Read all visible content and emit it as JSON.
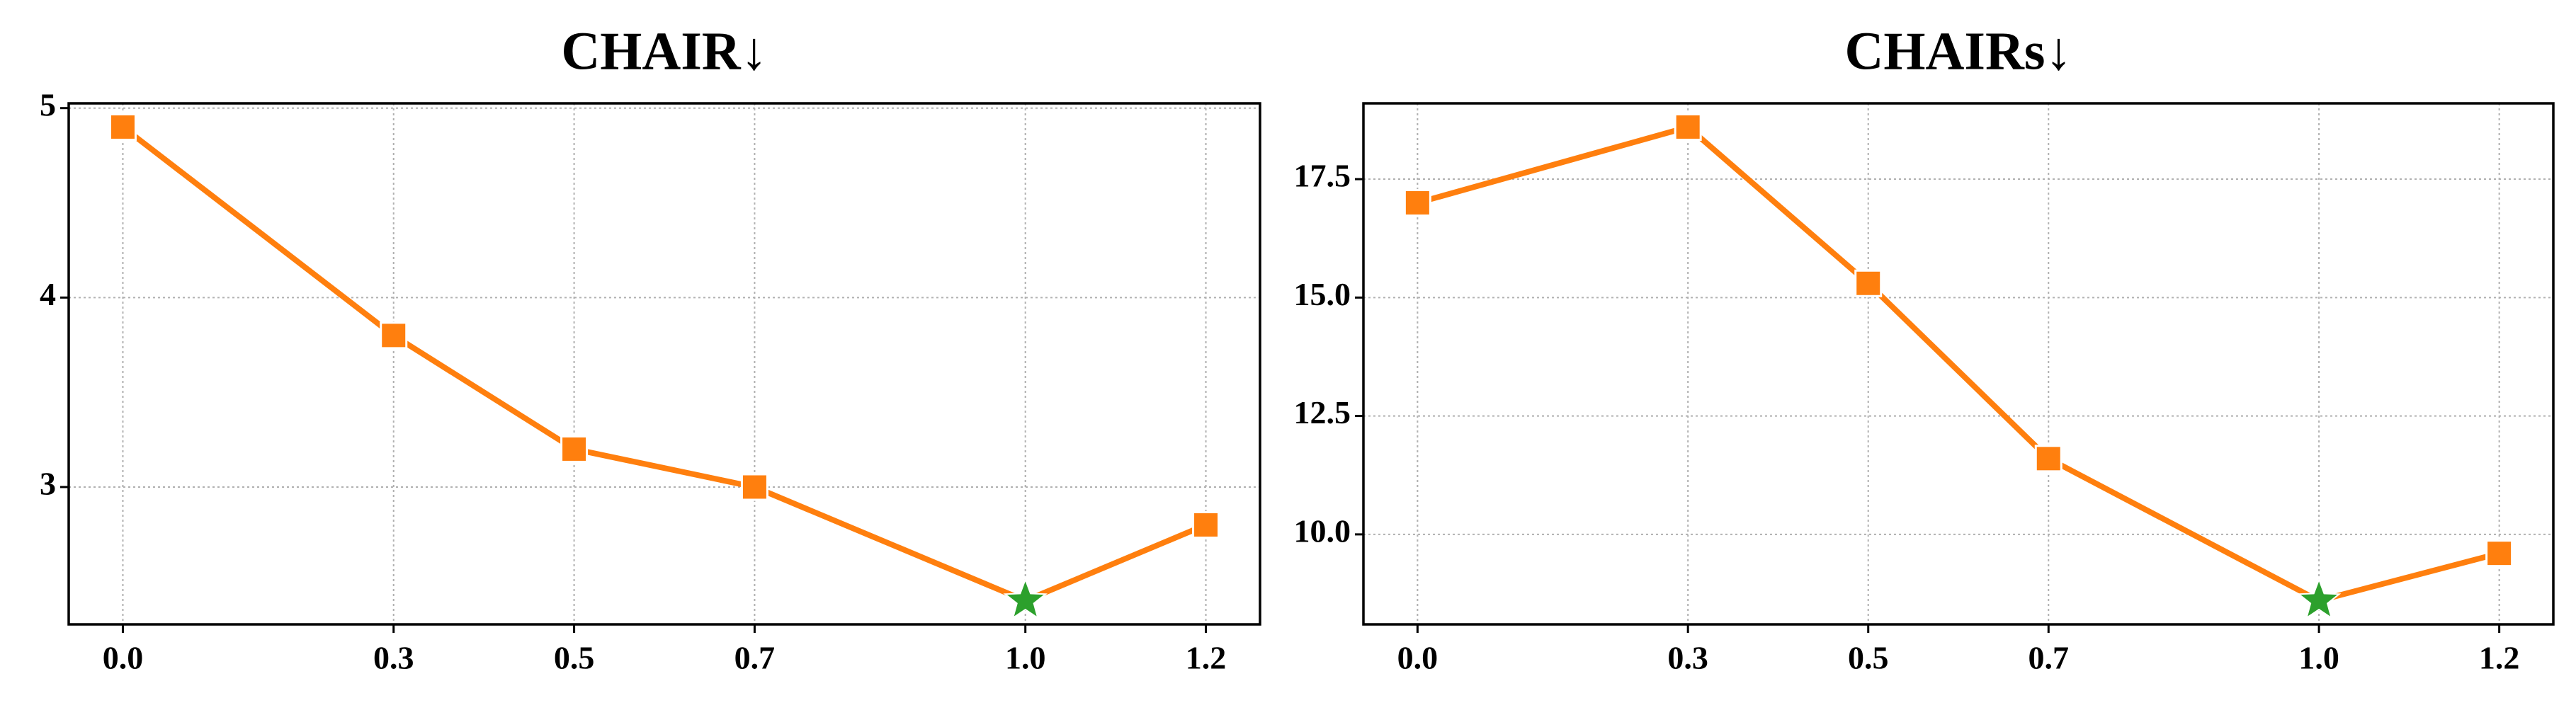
{
  "chart_data": [
    {
      "type": "line",
      "title": "CHAIR↓",
      "x": [
        {
          "value": 0.0,
          "label": "0.0"
        },
        0.3,
        0.5,
        0.7,
        {
          "value": 1.0,
          "label": "1.0"
        },
        1.2
      ],
      "series": [
        {
          "color": "#ff7f0e",
          "values": [
            4.9,
            3.8,
            3.2,
            3.0,
            2.4,
            2.8
          ]
        }
      ],
      "marker": "square",
      "highlight_index": 4,
      "highlight_color": "#2ca02c",
      "xlim": [
        -0.06,
        1.26
      ],
      "ylim": [
        2.275,
        5.025
      ],
      "xticks": [
        {
          "value": 0.0,
          "label": "0.0"
        },
        0.3,
        0.5,
        0.7,
        {
          "value": 1.0,
          "label": "1.0"
        },
        1.2
      ],
      "yticks": [
        3,
        4,
        5
      ],
      "grid": true
    },
    {
      "type": "line",
      "title": "CHAIRs↓",
      "x": [
        {
          "value": 0.0,
          "label": "0.0"
        },
        0.3,
        0.5,
        0.7,
        {
          "value": 1.0,
          "label": "1.0"
        },
        1.2
      ],
      "series": [
        {
          "color": "#ff7f0e",
          "values": [
            17.0,
            18.6,
            15.3,
            11.6,
            8.6,
            9.6
          ]
        }
      ],
      "marker": "square",
      "highlight_index": 4,
      "highlight_color": "#2ca02c",
      "xlim": [
        -0.06,
        1.26
      ],
      "ylim": [
        8.1,
        19.1
      ],
      "xticks": [
        {
          "value": 0.0,
          "label": "0.0"
        },
        0.3,
        0.5,
        0.7,
        {
          "value": 1.0,
          "label": "1.0"
        },
        1.2
      ],
      "yticks": [
        {
          "value": 10.0,
          "label": "10.0"
        },
        12.5,
        {
          "value": 15.0,
          "label": "15.0"
        },
        17.5
      ],
      "grid": true
    }
  ]
}
